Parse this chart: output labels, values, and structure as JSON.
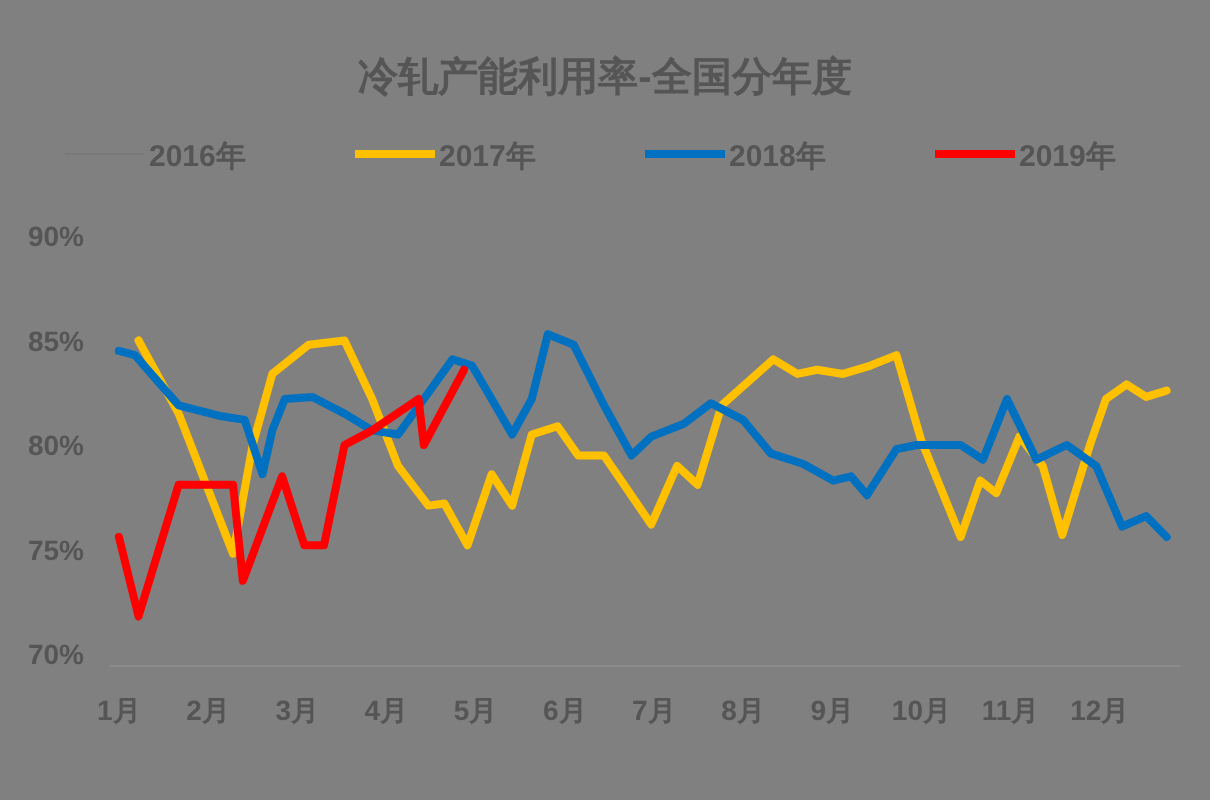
{
  "chart_data": {
    "type": "line",
    "title": "冷轧产能利用率-全国分年度",
    "xlim": [
      0.9,
      12.9
    ],
    "xticks": [
      {
        "value": 1,
        "label": "1月"
      },
      {
        "value": 2,
        "label": "2月"
      },
      {
        "value": 3,
        "label": "3月"
      },
      {
        "value": 4,
        "label": "4月"
      },
      {
        "value": 5,
        "label": "5月"
      },
      {
        "value": 6,
        "label": "6月"
      },
      {
        "value": 7,
        "label": "7月"
      },
      {
        "value": 8,
        "label": "8月"
      },
      {
        "value": 9,
        "label": "9月"
      },
      {
        "value": 10,
        "label": "10月"
      },
      {
        "value": 11,
        "label": "11月"
      },
      {
        "value": 12,
        "label": "12月"
      }
    ],
    "ylim": [
      70,
      90
    ],
    "yticks": [
      {
        "value": 70,
        "label": "70%"
      },
      {
        "value": 75,
        "label": "75%"
      },
      {
        "value": 80,
        "label": "80%"
      },
      {
        "value": 85,
        "label": "85%"
      },
      {
        "value": 90,
        "label": "90%"
      }
    ],
    "legend": "top",
    "grid": false,
    "marker": "none",
    "line_style": "solid",
    "series": [
      {
        "name": "2016年",
        "color": "#7a7a7a"
      },
      {
        "name": "2017年",
        "color": "#ffc000",
        "x": [
          1.22,
          1.67,
          2.28,
          2.5,
          2.72,
          3.13,
          3.53,
          3.84,
          4.13,
          4.47,
          4.65,
          4.91,
          5.18,
          5.41,
          5.63,
          5.92,
          6.15,
          6.44,
          6.97,
          7.26,
          7.49,
          7.76,
          8.34,
          8.61,
          8.83,
          9.12,
          9.43,
          9.72,
          10.0,
          10.44,
          10.66,
          10.84,
          11.1,
          11.36,
          11.58,
          11.89,
          12.07,
          12.3,
          12.52,
          12.75
        ],
        "values": [
          85.0,
          81.5,
          74.8,
          80.0,
          83.4,
          84.8,
          85.0,
          82.2,
          79.0,
          77.1,
          77.2,
          75.2,
          78.6,
          77.1,
          80.5,
          80.9,
          79.5,
          79.5,
          76.2,
          79.0,
          78.1,
          81.9,
          84.1,
          83.4,
          83.6,
          83.4,
          83.8,
          84.3,
          80.2,
          75.6,
          78.3,
          77.7,
          80.4,
          79.0,
          75.7,
          80.0,
          82.2,
          82.9,
          82.3,
          82.6
        ]
      },
      {
        "name": "2018年",
        "color": "#0070c0",
        "x": [
          1.0,
          1.18,
          1.67,
          2.12,
          2.41,
          2.61,
          2.72,
          2.86,
          3.17,
          3.53,
          3.84,
          4.13,
          4.42,
          4.74,
          4.96,
          5.18,
          5.41,
          5.63,
          5.81,
          6.1,
          6.44,
          6.75,
          6.97,
          7.33,
          7.64,
          8.0,
          8.31,
          8.67,
          9.01,
          9.21,
          9.39,
          9.72,
          9.95,
          10.44,
          10.69,
          10.96,
          11.29,
          11.63,
          11.96,
          12.25,
          12.52,
          12.75
        ],
        "values": [
          84.5,
          84.3,
          81.9,
          81.4,
          81.2,
          78.6,
          80.7,
          82.2,
          82.3,
          81.5,
          80.7,
          80.5,
          82.2,
          84.1,
          83.8,
          82.2,
          80.5,
          82.2,
          85.3,
          84.8,
          81.9,
          79.5,
          80.4,
          81.0,
          82.0,
          81.2,
          79.6,
          79.1,
          78.3,
          78.5,
          77.6,
          79.8,
          80.0,
          80.0,
          79.3,
          82.2,
          79.3,
          80.0,
          79.0,
          76.1,
          76.6,
          75.6
        ]
      },
      {
        "name": "2019年",
        "color": "#ff0000",
        "x": [
          1.0,
          1.22,
          1.67,
          2.28,
          2.39,
          2.83,
          3.08,
          3.3,
          3.53,
          3.84,
          4.36,
          4.42,
          4.87
        ],
        "values": [
          75.6,
          71.8,
          78.1,
          78.1,
          73.5,
          78.5,
          75.2,
          75.2,
          80.0,
          80.7,
          82.2,
          80.0,
          83.6
        ]
      }
    ]
  }
}
